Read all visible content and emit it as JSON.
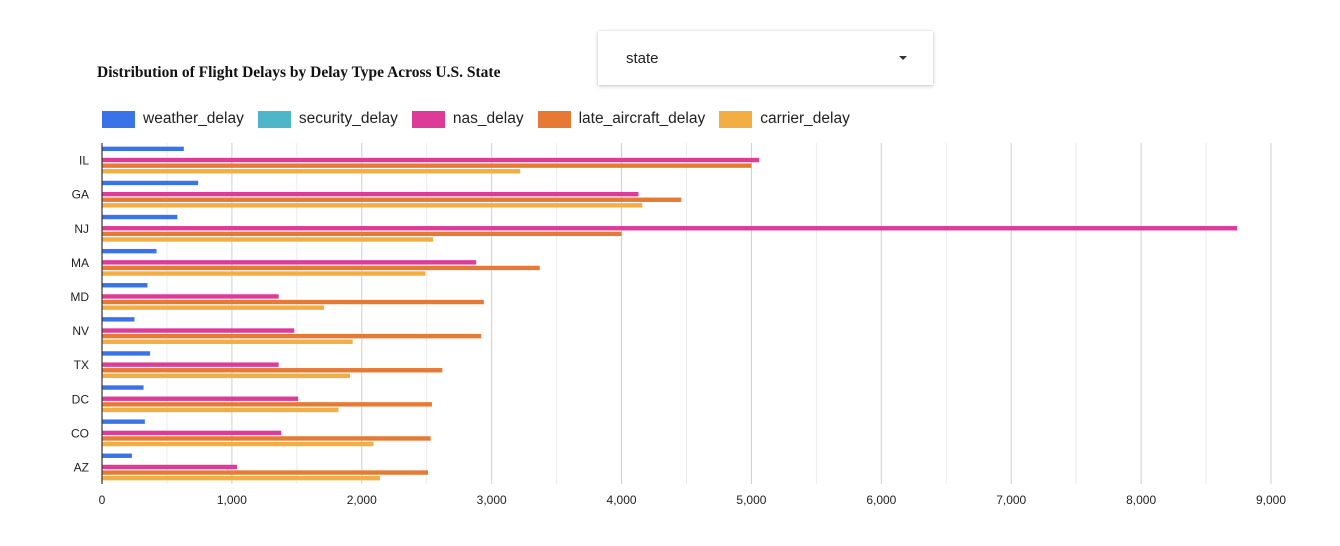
{
  "header": {
    "title": "Distribution of Flight Delays by Delay Type Across U.S. State"
  },
  "dropdown": {
    "value": "state",
    "icon": "caret-down-icon"
  },
  "chart_data": {
    "type": "bar",
    "orientation": "horizontal",
    "title": "Distribution of Flight Delays by Delay Type Across U.S. State",
    "categories": [
      "IL",
      "GA",
      "NJ",
      "MA",
      "MD",
      "NV",
      "TX",
      "DC",
      "CO",
      "AZ"
    ],
    "series": [
      {
        "name": "weather_delay",
        "color": "#3a73e8",
        "values": [
          630,
          740,
          580,
          420,
          350,
          250,
          370,
          320,
          330,
          230
        ]
      },
      {
        "name": "security_delay",
        "color": "#4fb6c9",
        "values": [
          0,
          0,
          0,
          0,
          0,
          0,
          0,
          0,
          0,
          0
        ]
      },
      {
        "name": "nas_delay",
        "color": "#de3a97",
        "values": [
          5060,
          4130,
          8740,
          2880,
          1360,
          1480,
          1360,
          1510,
          1380,
          1040
        ]
      },
      {
        "name": "late_aircraft_delay",
        "color": "#e67a35",
        "values": [
          5000,
          4460,
          4000,
          3370,
          2940,
          2920,
          2620,
          2540,
          2530,
          2510
        ]
      },
      {
        "name": "carrier_delay",
        "color": "#f2ad43",
        "values": [
          3220,
          4160,
          2550,
          2490,
          1710,
          1930,
          1910,
          1820,
          2090,
          2140
        ]
      }
    ],
    "xlim": [
      0,
      9000
    ],
    "x_ticks": [
      0,
      1000,
      2000,
      3000,
      4000,
      5000,
      6000,
      7000,
      8000,
      9000
    ],
    "x_tick_labels": [
      "0",
      "1,000",
      "2,000",
      "3,000",
      "4,000",
      "5,000",
      "6,000",
      "7,000",
      "8,000",
      "9,000"
    ],
    "grid": true,
    "legend": "top"
  }
}
